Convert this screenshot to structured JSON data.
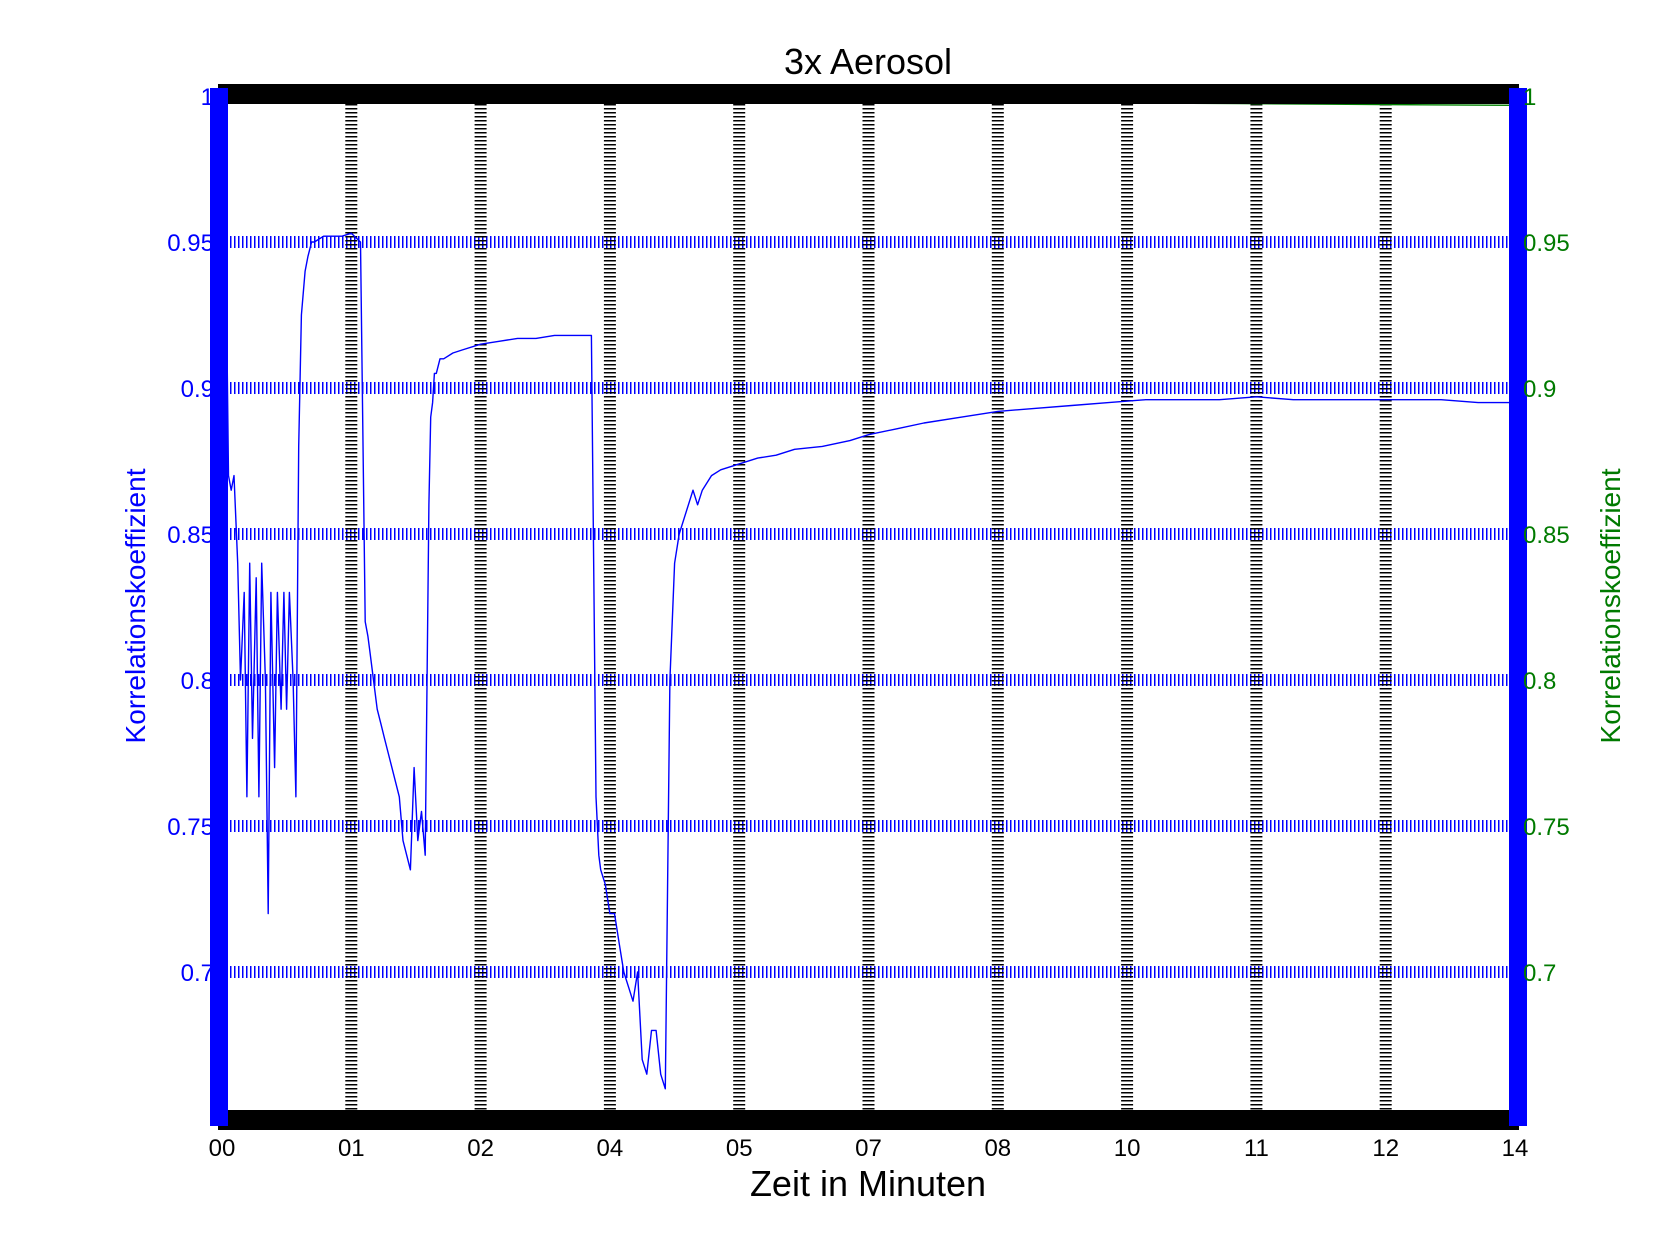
{
  "chart_data": {
    "type": "line",
    "title": "3x Aerosol",
    "xlabel": "Zeit in Minuten",
    "ylabel_left": "Korrelationskoeffizient",
    "ylabel_right": "Korrelationskoeffizient",
    "xlim": [
      0,
      14
    ],
    "ylim": [
      0.65,
      1.0
    ],
    "grid": true,
    "x_tick_values": [
      0,
      1.4,
      2.8,
      4.2,
      5.6,
      7.0,
      8.4,
      9.8,
      11.2,
      12.6,
      14.0
    ],
    "x_tick_labels": [
      "00",
      "01",
      "02",
      "04",
      "05",
      "07",
      "08",
      "10",
      "11",
      "12",
      "14"
    ],
    "y_tick_values": [
      0.7,
      0.75,
      0.8,
      0.85,
      0.9,
      0.95,
      1.0
    ],
    "y_tick_labels_left": [
      "0.7",
      "0.75",
      "0.8",
      "0.85",
      "0.9",
      "0.95",
      "1"
    ],
    "y_tick_labels_right": [
      "0.7",
      "0.75",
      "0.8",
      "0.85",
      "0.9",
      "0.95",
      "1"
    ],
    "colors": {
      "left_axis": "#0000ff",
      "right_axis": "#007a00",
      "frame": "#000000",
      "series_1": "#0000ff",
      "series_2": "#008000"
    },
    "series": [
      {
        "axis": "left",
        "x": [
          0.0,
          0.03,
          0.07,
          0.1,
          0.13,
          0.17,
          0.2,
          0.24,
          0.27,
          0.3,
          0.33,
          0.37,
          0.4,
          0.43,
          0.47,
          0.5,
          0.53,
          0.57,
          0.6,
          0.64,
          0.67,
          0.7,
          0.73,
          0.77,
          0.8,
          0.83,
          0.86,
          0.9,
          0.93,
          0.97,
          1.0,
          1.1,
          1.2,
          1.3,
          1.4,
          1.5,
          1.55,
          1.58,
          1.6,
          1.64,
          1.68,
          1.72,
          1.76,
          1.8,
          1.84,
          1.88,
          1.92,
          1.96,
          2.0,
          2.04,
          2.08,
          2.12,
          2.16,
          2.2,
          2.24,
          2.26,
          2.28,
          2.3,
          2.32,
          2.36,
          2.4,
          2.5,
          2.6,
          2.8,
          3.0,
          3.2,
          3.4,
          3.6,
          3.8,
          4.0,
          4.05,
          4.08,
          4.1,
          4.15,
          4.2,
          4.25,
          4.3,
          4.35,
          4.4,
          4.45,
          4.5,
          4.55,
          4.6,
          4.65,
          4.7,
          4.75,
          4.8,
          4.85,
          4.9,
          4.95,
          5.0,
          5.05,
          5.1,
          5.15,
          5.2,
          5.3,
          5.4,
          5.6,
          5.8,
          6.0,
          6.2,
          6.5,
          6.8,
          7.0,
          7.3,
          7.6,
          8.0,
          8.4,
          8.8,
          9.2,
          9.6,
          10.0,
          10.4,
          10.8,
          11.2,
          11.6,
          12.0,
          12.4,
          12.8,
          13.2,
          13.6,
          14.0
        ],
        "y": [
          1.0,
          0.98,
          0.87,
          0.865,
          0.87,
          0.84,
          0.8,
          0.83,
          0.76,
          0.84,
          0.78,
          0.835,
          0.76,
          0.84,
          0.8,
          0.72,
          0.83,
          0.77,
          0.83,
          0.79,
          0.83,
          0.79,
          0.83,
          0.8,
          0.76,
          0.88,
          0.925,
          0.94,
          0.945,
          0.95,
          0.95,
          0.952,
          0.952,
          0.952,
          0.953,
          0.95,
          0.82,
          0.815,
          0.81,
          0.8,
          0.79,
          0.785,
          0.78,
          0.775,
          0.77,
          0.765,
          0.76,
          0.745,
          0.74,
          0.735,
          0.77,
          0.745,
          0.755,
          0.74,
          0.86,
          0.89,
          0.895,
          0.905,
          0.905,
          0.91,
          0.91,
          0.912,
          0.913,
          0.915,
          0.916,
          0.917,
          0.917,
          0.918,
          0.918,
          0.918,
          0.76,
          0.74,
          0.735,
          0.73,
          0.72,
          0.72,
          0.71,
          0.7,
          0.695,
          0.69,
          0.7,
          0.67,
          0.665,
          0.68,
          0.68,
          0.665,
          0.66,
          0.8,
          0.84,
          0.85,
          0.855,
          0.86,
          0.865,
          0.86,
          0.865,
          0.87,
          0.872,
          0.874,
          0.876,
          0.877,
          0.879,
          0.88,
          0.882,
          0.884,
          0.886,
          0.888,
          0.89,
          0.892,
          0.893,
          0.894,
          0.895,
          0.896,
          0.896,
          0.896,
          0.897,
          0.896,
          0.896,
          0.896,
          0.896,
          0.896,
          0.895,
          0.895
        ]
      },
      {
        "axis": "right",
        "x": [
          0,
          1,
          2,
          3,
          4,
          5,
          6,
          7,
          8,
          9,
          10,
          11,
          12,
          13,
          14
        ],
        "y": [
          1.0,
          0.9995,
          0.9993,
          0.999,
          0.9988,
          0.9986,
          0.9984,
          0.9982,
          0.998,
          0.9978,
          0.9976,
          0.9974,
          0.9972,
          0.997,
          0.9968
        ]
      }
    ]
  }
}
